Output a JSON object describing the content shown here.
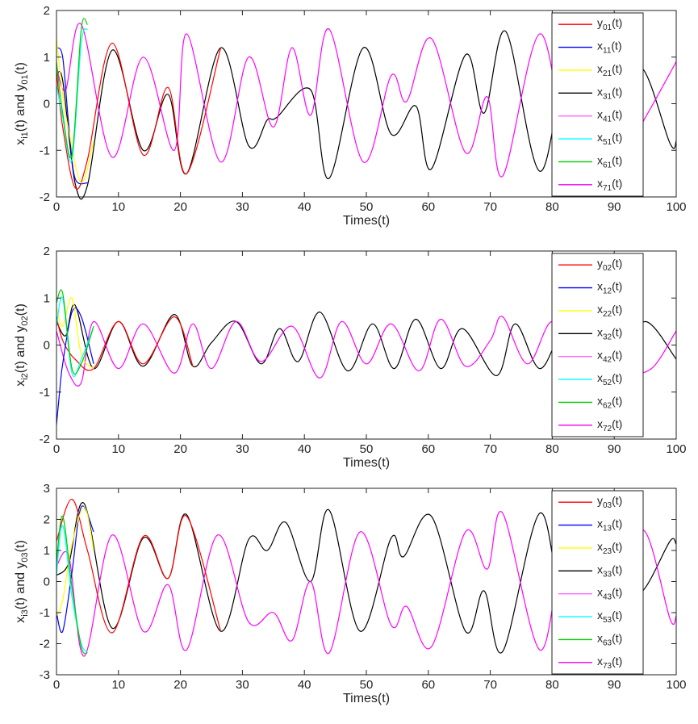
{
  "chart_data": [
    {
      "type": "line",
      "xlabel": "Times(t)",
      "ylabel": {
        "base": "x",
        "sub1": "i1",
        "mid": "(t) and y",
        "sub2": "01",
        "end": "(t)"
      },
      "xlim": [
        0,
        100
      ],
      "ylim": [
        -2,
        2
      ],
      "xticks": [
        0,
        10,
        20,
        30,
        40,
        50,
        60,
        70,
        80,
        90,
        100
      ],
      "yticks": [
        -2,
        -1,
        0,
        1,
        2
      ],
      "legend_position": "top-right",
      "grid": false,
      "legend": [
        {
          "base": "y",
          "sub": "01",
          "end": "(t)",
          "color": "#ff0000"
        },
        {
          "base": "x",
          "sub": "11",
          "end": "(t)",
          "color": "#0000ff"
        },
        {
          "base": "x",
          "sub": "21",
          "end": "(t)",
          "color": "#ffff00"
        },
        {
          "base": "x",
          "sub": "31",
          "end": "(t)",
          "color": "#000000"
        },
        {
          "base": "x",
          "sub": "41",
          "end": "(t)",
          "color": "#ff66ff"
        },
        {
          "base": "x",
          "sub": "51",
          "end": "(t)",
          "color": "#00ffff"
        },
        {
          "base": "x",
          "sub": "61",
          "end": "(t)",
          "color": "#00cc00"
        },
        {
          "base": "x",
          "sub": "71",
          "end": "(t)",
          "color": "#ee00ee"
        }
      ],
      "series": [
        {
          "color": "#000000",
          "x": [
            0,
            1,
            3,
            5,
            9,
            14,
            18,
            21,
            26.5,
            31,
            34,
            35.5,
            41,
            44,
            49.5,
            54,
            58,
            60.5,
            66,
            69,
            72.5,
            78,
            83,
            89.5,
            94,
            99,
            100
          ],
          "y": [
            0.6,
            0.5,
            -1.7,
            -1.75,
            1.15,
            -1.0,
            0.2,
            -1.5,
            1.2,
            -0.9,
            -0.35,
            -0.3,
            0.3,
            -1.6,
            1.2,
            -0.65,
            -0.05,
            -1.4,
            1.05,
            -0.2,
            1.55,
            -1.45,
            1.05,
            -1.0,
            0.8,
            -0.85,
            -0.8
          ]
        },
        {
          "color": "#ff00ff",
          "x": [
            0,
            1.5,
            4,
            9,
            14,
            19,
            21,
            26.5,
            31,
            35,
            38,
            41,
            44,
            49.5,
            54,
            56.5,
            60.5,
            66,
            69.5,
            72,
            78,
            83,
            88,
            92,
            95,
            100
          ],
          "y": [
            0.8,
            0.3,
            1.7,
            -1.15,
            1.0,
            -1.0,
            1.5,
            -1.25,
            1.0,
            -0.5,
            1.2,
            -0.25,
            1.6,
            -1.25,
            0.6,
            0.05,
            1.4,
            -1.05,
            0.15,
            -1.55,
            1.5,
            -1.1,
            1.0,
            -0.9,
            -0.3,
            0.9
          ]
        },
        {
          "color": "#ff0000",
          "x": [
            0,
            1,
            3,
            5,
            9,
            14,
            18,
            21,
            26.5
          ],
          "y": [
            0.7,
            -0.5,
            -1.8,
            -1.2,
            1.3,
            -1.1,
            0.35,
            -1.5,
            1.2
          ]
        },
        {
          "color": "#0000ff",
          "x": [
            0,
            1,
            2,
            3,
            5
          ],
          "y": [
            1.2,
            1.0,
            -0.5,
            -1.6,
            -1.7
          ]
        },
        {
          "color": "#ffff00",
          "x": [
            0,
            1,
            2,
            4,
            6
          ],
          "y": [
            1.4,
            0.2,
            -0.6,
            -1.7,
            -0.8
          ]
        },
        {
          "color": "#00ffff",
          "x": [
            0,
            1,
            2.5,
            4,
            5
          ],
          "y": [
            0.4,
            -0.3,
            -1.2,
            1.3,
            1.6
          ]
        },
        {
          "color": "#00cc00",
          "x": [
            0,
            1,
            2.5,
            4,
            5
          ],
          "y": [
            0.9,
            -0.2,
            -1.1,
            1.6,
            1.7
          ]
        }
      ]
    },
    {
      "type": "line",
      "xlabel": "Times(t)",
      "ylabel": {
        "base": "x",
        "sub1": "i2",
        "mid": "(t) and y",
        "sub2": "02",
        "end": "(t)"
      },
      "xlim": [
        0,
        100
      ],
      "ylim": [
        -2,
        2
      ],
      "xticks": [
        0,
        10,
        20,
        30,
        40,
        50,
        60,
        70,
        80,
        90,
        100
      ],
      "yticks": [
        -2,
        -1,
        0,
        1,
        2
      ],
      "legend_position": "top-right",
      "grid": false,
      "legend": [
        {
          "base": "y",
          "sub": "02",
          "end": "(t)",
          "color": "#ff0000"
        },
        {
          "base": "x",
          "sub": "12",
          "end": "(t)",
          "color": "#0000ff"
        },
        {
          "base": "x",
          "sub": "22",
          "end": "(t)",
          "color": "#ffff00"
        },
        {
          "base": "x",
          "sub": "32",
          "end": "(t)",
          "color": "#000000"
        },
        {
          "base": "x",
          "sub": "42",
          "end": "(t)",
          "color": "#ff66ff"
        },
        {
          "base": "x",
          "sub": "52",
          "end": "(t)",
          "color": "#00ffff"
        },
        {
          "base": "x",
          "sub": "62",
          "end": "(t)",
          "color": "#00cc00"
        },
        {
          "base": "x",
          "sub": "72",
          "end": "(t)",
          "color": "#ee00ee"
        }
      ],
      "series": [
        {
          "color": "#000000",
          "x": [
            0,
            1.5,
            3,
            6,
            10,
            14,
            19,
            22,
            25,
            29,
            33,
            36,
            39,
            42.5,
            47,
            51,
            54.5,
            58,
            62,
            65.5,
            71,
            74,
            78,
            82,
            86,
            91,
            95,
            100
          ],
          "y": [
            0.5,
            0.2,
            0.85,
            -0.5,
            0.5,
            -0.45,
            0.65,
            -0.45,
            0.05,
            0.5,
            -0.4,
            0.35,
            -0.35,
            0.7,
            -0.55,
            0.45,
            -0.5,
            0.55,
            -0.5,
            0.35,
            -0.65,
            0.45,
            -0.5,
            0.35,
            -0.2,
            -0.3,
            0.5,
            -0.3
          ]
        },
        {
          "color": "#ff00ff",
          "x": [
            0,
            2,
            4,
            6,
            10,
            14,
            19,
            22,
            25,
            29,
            33,
            38,
            42.5,
            46,
            50,
            54,
            58.5,
            62,
            66,
            70,
            72,
            76,
            80,
            84,
            88,
            92,
            96,
            100
          ],
          "y": [
            0.3,
            -0.6,
            -0.8,
            0.5,
            -0.5,
            0.45,
            -0.6,
            0.45,
            -0.5,
            0.5,
            -0.35,
            0.4,
            -0.7,
            0.5,
            -0.4,
            0.45,
            -0.55,
            0.55,
            -0.45,
            0.1,
            0.6,
            -0.4,
            0.5,
            -0.4,
            0.3,
            -0.5,
            -0.5,
            0.3
          ]
        },
        {
          "color": "#ff0000",
          "x": [
            0,
            1,
            3,
            6,
            10,
            14,
            19,
            22
          ],
          "y": [
            0.6,
            0.1,
            -0.3,
            -0.5,
            0.5,
            -0.4,
            0.6,
            -0.45
          ]
        },
        {
          "color": "#0000ff",
          "x": [
            0,
            0.5,
            1,
            2.5,
            4,
            6
          ],
          "y": [
            -1.7,
            -1.0,
            -0.4,
            0.7,
            0.6,
            -0.4
          ]
        },
        {
          "color": "#ffff00",
          "x": [
            0,
            1,
            2.5,
            4,
            6
          ],
          "y": [
            0.8,
            0.4,
            1.0,
            -0.2,
            -0.5
          ]
        },
        {
          "color": "#00ffff",
          "x": [
            0,
            1,
            2.5,
            4,
            6
          ],
          "y": [
            0.4,
            1.0,
            -0.6,
            -0.3,
            0.4
          ]
        },
        {
          "color": "#00cc00",
          "x": [
            0,
            1,
            2.5,
            4,
            6
          ],
          "y": [
            0.9,
            1.1,
            -0.5,
            -0.4,
            0.4
          ]
        }
      ]
    },
    {
      "type": "line",
      "xlabel": "Times(t)",
      "ylabel": {
        "base": "x",
        "sub1": "i3",
        "mid": "(t) and y",
        "sub2": "03",
        "end": "(t)"
      },
      "xlim": [
        0,
        100
      ],
      "ylim": [
        -3,
        3
      ],
      "xticks": [
        0,
        10,
        20,
        30,
        40,
        50,
        60,
        70,
        80,
        90,
        100
      ],
      "yticks": [
        -3,
        -2,
        -1,
        0,
        1,
        2,
        3
      ],
      "legend_position": "top-right",
      "grid": false,
      "legend": [
        {
          "base": "y",
          "sub": "03",
          "end": "(t)",
          "color": "#ff0000"
        },
        {
          "base": "x",
          "sub": "13",
          "end": "(t)",
          "color": "#0000ff"
        },
        {
          "base": "x",
          "sub": "23",
          "end": "(t)",
          "color": "#ffff00"
        },
        {
          "base": "x",
          "sub": "33",
          "end": "(t)",
          "color": "#000000"
        },
        {
          "base": "x",
          "sub": "43",
          "end": "(t)",
          "color": "#ff66ff"
        },
        {
          "base": "x",
          "sub": "53",
          "end": "(t)",
          "color": "#00ffff"
        },
        {
          "base": "x",
          "sub": "63",
          "end": "(t)",
          "color": "#00cc00"
        },
        {
          "base": "x",
          "sub": "73",
          "end": "(t)",
          "color": "#ee00ee"
        }
      ],
      "series": [
        {
          "color": "#000000",
          "x": [
            0,
            2,
            4.5,
            9,
            14,
            18,
            21,
            26.5,
            31,
            34,
            37,
            41,
            44,
            49,
            54,
            56,
            60.5,
            66,
            69,
            72,
            78,
            82,
            87,
            91,
            95,
            99,
            100
          ],
          "y": [
            0.2,
            0.6,
            2.5,
            -1.5,
            1.4,
            0.1,
            2.15,
            -1.6,
            1.35,
            1.0,
            1.9,
            0.0,
            2.3,
            -1.6,
            1.4,
            0.8,
            2.1,
            -1.6,
            -0.3,
            -2.25,
            2.2,
            -0.9,
            1.2,
            -0.8,
            -0.2,
            1.3,
            1.2
          ]
        },
        {
          "color": "#ff00ff",
          "x": [
            0,
            2,
            4.5,
            9,
            14,
            18,
            21,
            26,
            31,
            35,
            38,
            41,
            44,
            49,
            54,
            56.5,
            60.5,
            66,
            69.5,
            72,
            78,
            82,
            87,
            91,
            95,
            99,
            100
          ],
          "y": [
            0.5,
            0.8,
            -2.4,
            1.5,
            -1.6,
            -0.1,
            -2.2,
            1.5,
            -1.3,
            -1.0,
            -1.9,
            0.0,
            -2.3,
            1.6,
            -1.4,
            -0.8,
            -2.1,
            1.6,
            0.4,
            2.2,
            -2.2,
            0.9,
            -1.2,
            0.8,
            1.6,
            -1.2,
            -1.1
          ]
        },
        {
          "color": "#ff0000",
          "x": [
            0,
            2.5,
            5,
            9,
            14,
            18,
            21,
            26.5
          ],
          "y": [
            1.3,
            2.65,
            1.0,
            -1.65,
            1.45,
            0.1,
            2.1,
            -1.6
          ]
        },
        {
          "color": "#0000ff",
          "x": [
            0,
            1,
            2.5,
            4,
            6
          ],
          "y": [
            -1.0,
            -1.6,
            0.3,
            2.4,
            1.6
          ]
        },
        {
          "color": "#ffff00",
          "x": [
            0,
            1,
            2.5,
            4.5,
            6
          ],
          "y": [
            -1.1,
            -0.6,
            1.2,
            2.4,
            1.0
          ]
        },
        {
          "color": "#00ffff",
          "x": [
            0,
            1,
            2.5,
            4,
            5
          ],
          "y": [
            0.2,
            1.8,
            -0.5,
            -2.0,
            -2.25
          ]
        },
        {
          "color": "#00cc00",
          "x": [
            0,
            1,
            2.5,
            4,
            5
          ],
          "y": [
            0.6,
            2.1,
            -0.2,
            -2.1,
            -2.3
          ]
        }
      ]
    }
  ]
}
